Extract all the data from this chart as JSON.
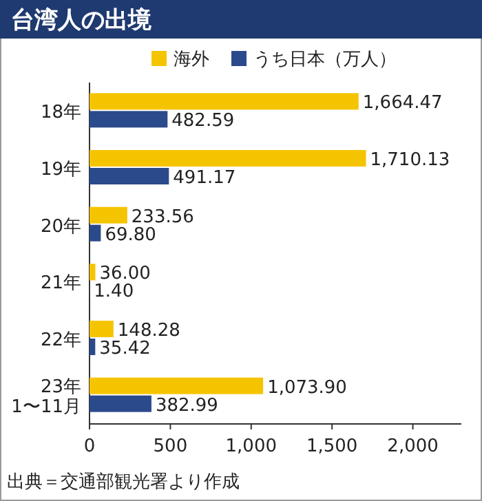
{
  "chart_data": {
    "type": "bar",
    "orientation": "horizontal",
    "title": "台湾人の出境",
    "categories": [
      "18年",
      "19年",
      "20年",
      "21年",
      "22年",
      "23年\n1〜11月"
    ],
    "series": [
      {
        "name": "海外",
        "color": "#f5c400",
        "values": [
          1664.47,
          1710.13,
          233.56,
          36.0,
          148.28,
          1073.9
        ],
        "value_labels": [
          "1,664.47",
          "1,710.13",
          "233.56",
          "36.00",
          "148.28",
          "1,073.90"
        ]
      },
      {
        "name": "うち日本（万人）",
        "color": "#2b4a8b",
        "values": [
          482.59,
          491.17,
          69.8,
          1.4,
          35.42,
          382.99
        ],
        "value_labels": [
          "482.59",
          "491.17",
          "69.80",
          "1.40",
          "35.42",
          "382.99"
        ]
      }
    ],
    "xlim": [
      0,
      2300
    ],
    "xticks": [
      0,
      500,
      {
        "value": 1000,
        "label": "1,000"
      },
      {
        "value": 1500,
        "label": "1,500"
      },
      {
        "value": 2000,
        "label": "2,000"
      }
    ],
    "legend": "top",
    "annotations": [
      "出典＝交通部観光署より作成"
    ]
  }
}
